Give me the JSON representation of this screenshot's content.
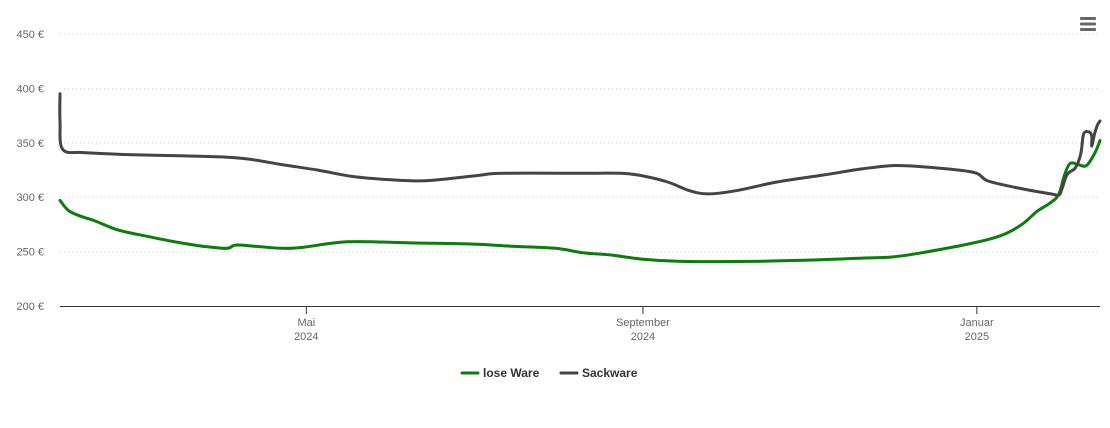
{
  "chart_data": {
    "type": "line",
    "title": "",
    "xlabel": "",
    "ylabel": "",
    "y_unit": "€",
    "ylim": [
      200,
      450
    ],
    "y_ticks": [
      {
        "value": 200,
        "label": "200 €"
      },
      {
        "value": 250,
        "label": "250 €"
      },
      {
        "value": 300,
        "label": "300 €"
      },
      {
        "value": 350,
        "label": "350 €"
      },
      {
        "value": 400,
        "label": "400 €"
      },
      {
        "value": 450,
        "label": "450 €"
      }
    ],
    "xlim": [
      "2024-02-01",
      "2025-02-15"
    ],
    "x_ticks": [
      {
        "date": "2024-05-01",
        "month": "Mai",
        "year": "2024"
      },
      {
        "date": "2024-09-01",
        "month": "September",
        "year": "2024"
      },
      {
        "date": "2025-01-01",
        "month": "Januar",
        "year": "2025"
      }
    ],
    "grid": "horizontal dotted",
    "legend_position": "bottom-center",
    "series": [
      {
        "name": "lose Ware",
        "color": "#0a7d0a",
        "points": [
          [
            "2024-02-01",
            297
          ],
          [
            "2024-02-04",
            288
          ],
          [
            "2024-02-08",
            283
          ],
          [
            "2024-02-14",
            278
          ],
          [
            "2024-02-22",
            270
          ],
          [
            "2024-03-04",
            264
          ],
          [
            "2024-03-14",
            259
          ],
          [
            "2024-03-24",
            255
          ],
          [
            "2024-04-02",
            253
          ],
          [
            "2024-04-05",
            256
          ],
          [
            "2024-04-12",
            255
          ],
          [
            "2024-04-22",
            253
          ],
          [
            "2024-04-30",
            254
          ],
          [
            "2024-05-08",
            257
          ],
          [
            "2024-05-16",
            259
          ],
          [
            "2024-05-25",
            259
          ],
          [
            "2024-06-08",
            258
          ],
          [
            "2024-06-30",
            257
          ],
          [
            "2024-07-15",
            255
          ],
          [
            "2024-07-31",
            253
          ],
          [
            "2024-08-10",
            249
          ],
          [
            "2024-08-20",
            247
          ],
          [
            "2024-09-01",
            243
          ],
          [
            "2024-09-15",
            241
          ],
          [
            "2024-10-10",
            241
          ],
          [
            "2024-10-30",
            242
          ],
          [
            "2024-11-20",
            244
          ],
          [
            "2024-12-01",
            245
          ],
          [
            "2024-12-12",
            249
          ],
          [
            "2024-12-25",
            255
          ],
          [
            "2025-01-05",
            261
          ],
          [
            "2025-01-12",
            267
          ],
          [
            "2025-01-18",
            276
          ],
          [
            "2025-01-23",
            287
          ],
          [
            "2025-01-28",
            295
          ],
          [
            "2025-01-31",
            303
          ],
          [
            "2025-02-02",
            320
          ],
          [
            "2025-02-04",
            331
          ],
          [
            "2025-02-07",
            330
          ],
          [
            "2025-02-10",
            329
          ],
          [
            "2025-02-13",
            340
          ],
          [
            "2025-02-15",
            352
          ]
        ]
      },
      {
        "name": "Sackware",
        "color": "#444444",
        "points": [
          [
            "2024-02-01",
            395
          ],
          [
            "2024-02-01",
            370
          ],
          [
            "2024-02-02",
            344
          ],
          [
            "2024-02-10",
            341
          ],
          [
            "2024-02-28",
            339
          ],
          [
            "2024-03-18",
            338
          ],
          [
            "2024-03-31",
            337
          ],
          [
            "2024-04-10",
            335
          ],
          [
            "2024-04-22",
            330
          ],
          [
            "2024-05-05",
            325
          ],
          [
            "2024-05-18",
            319
          ],
          [
            "2024-06-01",
            316
          ],
          [
            "2024-06-12",
            315
          ],
          [
            "2024-06-22",
            317
          ],
          [
            "2024-07-03",
            320
          ],
          [
            "2024-07-12",
            322
          ],
          [
            "2024-08-12",
            322
          ],
          [
            "2024-08-24",
            322
          ],
          [
            "2024-08-31",
            320
          ],
          [
            "2024-09-10",
            314
          ],
          [
            "2024-09-18",
            306
          ],
          [
            "2024-09-25",
            303
          ],
          [
            "2024-10-05",
            306
          ],
          [
            "2024-10-20",
            314
          ],
          [
            "2024-11-05",
            320
          ],
          [
            "2024-11-20",
            326
          ],
          [
            "2024-12-01",
            329
          ],
          [
            "2024-12-12",
            328
          ],
          [
            "2024-12-25",
            325
          ],
          [
            "2025-01-01",
            322
          ],
          [
            "2025-01-05",
            315
          ],
          [
            "2025-01-15",
            309
          ],
          [
            "2025-01-28",
            303
          ],
          [
            "2025-01-31",
            302
          ],
          [
            "2025-02-01",
            307
          ],
          [
            "2025-02-03",
            321
          ],
          [
            "2025-02-06",
            327
          ],
          [
            "2025-02-08",
            340
          ],
          [
            "2025-02-09",
            358
          ],
          [
            "2025-02-11",
            360
          ],
          [
            "2025-02-12",
            356
          ],
          [
            "2025-02-12",
            347
          ],
          [
            "2025-02-13",
            358
          ],
          [
            "2025-02-14",
            366
          ],
          [
            "2025-02-15",
            370
          ]
        ]
      }
    ]
  },
  "menu": {
    "icon": "hamburger-menu-icon"
  }
}
